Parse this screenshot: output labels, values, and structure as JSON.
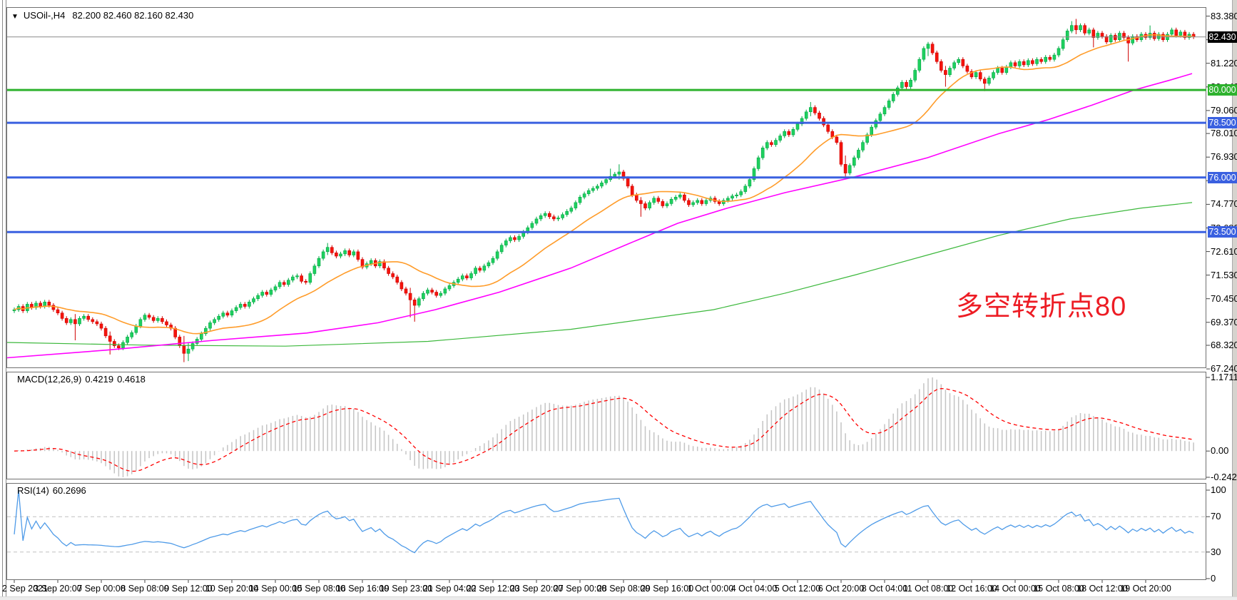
{
  "header": {
    "dropdown_icon": "▼",
    "symbol_display": "USOil-,H4",
    "ohlc_display": "82.200 82.460 82.160 82.430",
    "open": "82.200",
    "high": "82.460",
    "low": "82.160",
    "close": "82.430"
  },
  "colors": {
    "up_fill": "#1fd05f",
    "up_stroke": "#00a844",
    "down_fill": "#f5140c",
    "down_stroke": "#cf0000",
    "ma_orange": "#ff9c2a",
    "ma_magenta": "#ff00ff",
    "ma_green": "#3cb83c",
    "hline_green": "#2eb22e",
    "hline_blue": "#3a60e0",
    "price_line": "#8a8a8a",
    "price_badge_bg": "#000000",
    "macd_bar": "#c4c4c4",
    "macd_signal": "#ff0000",
    "rsi_line": "#4f9be8",
    "grid_dash": "#c0c0c0",
    "border": "#707070"
  },
  "chart_data": {
    "type": "candlestick",
    "symbol": "USOil-",
    "timeframe": "H4",
    "first_open": 69.9,
    "closes": [
      69.95,
      70.1,
      69.9,
      70.2,
      70.05,
      70.25,
      70.1,
      70.3,
      70.15,
      69.95,
      69.8,
      69.55,
      69.35,
      69.5,
      69.3,
      69.55,
      69.65,
      69.5,
      69.4,
      69.3,
      69.1,
      68.75,
      68.5,
      68.3,
      68.2,
      68.45,
      68.7,
      68.9,
      69.2,
      69.5,
      69.7,
      69.6,
      69.45,
      69.55,
      69.4,
      69.25,
      69.1,
      68.7,
      68.3,
      67.95,
      68.15,
      68.4,
      68.6,
      68.85,
      69.1,
      69.35,
      69.5,
      69.65,
      69.8,
      69.7,
      69.9,
      70.05,
      70.2,
      70.1,
      70.3,
      70.45,
      70.6,
      70.75,
      70.65,
      70.85,
      71.0,
      71.2,
      71.1,
      71.3,
      71.45,
      71.5,
      71.25,
      71.2,
      71.6,
      71.95,
      72.3,
      72.6,
      72.8,
      72.55,
      72.4,
      72.5,
      72.65,
      72.45,
      72.6,
      72.25,
      71.9,
      72.05,
      72.2,
      71.95,
      72.15,
      71.85,
      71.6,
      71.45,
      71.2,
      70.9,
      70.7,
      70.4,
      70.15,
      70.45,
      70.7,
      70.85,
      70.75,
      70.6,
      70.7,
      70.9,
      71.05,
      71.2,
      71.35,
      71.5,
      71.4,
      71.6,
      71.85,
      71.75,
      71.95,
      72.1,
      72.3,
      72.6,
      72.9,
      73.1,
      73.25,
      73.15,
      73.3,
      73.5,
      73.7,
      73.9,
      74.1,
      74.25,
      74.35,
      74.2,
      74.1,
      74.15,
      74.3,
      74.45,
      74.6,
      74.85,
      75.1,
      75.25,
      75.4,
      75.5,
      75.6,
      75.75,
      75.9,
      76.05,
      76.15,
      76.25,
      75.95,
      75.6,
      75.2,
      74.95,
      74.8,
      74.6,
      74.85,
      75.05,
      74.9,
      74.7,
      74.8,
      75.0,
      75.1,
      75.2,
      74.95,
      74.75,
      74.85,
      74.95,
      74.8,
      74.95,
      75.05,
      74.9,
      74.8,
      74.95,
      75.05,
      75.15,
      75.2,
      75.35,
      75.6,
      75.9,
      76.4,
      76.9,
      77.35,
      77.6,
      77.5,
      77.7,
      77.9,
      78.1,
      77.95,
      78.2,
      78.45,
      78.7,
      79.0,
      79.2,
      78.95,
      78.7,
      78.4,
      78.1,
      77.85,
      77.6,
      76.6,
      76.2,
      76.55,
      76.9,
      77.25,
      77.6,
      77.95,
      78.3,
      78.6,
      78.9,
      79.2,
      79.5,
      79.8,
      80.1,
      80.35,
      80.15,
      80.45,
      80.9,
      81.4,
      81.9,
      82.1,
      81.7,
      81.3,
      80.9,
      80.7,
      81.0,
      81.25,
      81.4,
      81.1,
      80.85,
      80.6,
      80.8,
      80.5,
      80.3,
      80.55,
      80.8,
      81.0,
      80.8,
      81.05,
      81.25,
      81.1,
      81.3,
      81.15,
      81.35,
      81.2,
      81.4,
      81.3,
      81.5,
      81.4,
      81.6,
      81.9,
      82.3,
      82.7,
      82.95,
      82.75,
      82.95,
      82.6,
      82.75,
      82.4,
      82.6,
      82.45,
      82.2,
      82.5,
      82.3,
      82.6,
      82.4,
      82.15,
      82.45,
      82.3,
      82.55,
      82.4,
      82.6,
      82.35,
      82.55,
      82.3,
      82.55,
      82.75,
      82.5,
      82.65,
      82.4,
      82.55,
      82.43
    ],
    "wick_overrides": {
      "14": [
        69.75,
        68.55
      ],
      "22": [
        68.95,
        67.9
      ],
      "39": [
        68.75,
        67.55
      ],
      "40": [
        68.45,
        67.6
      ],
      "72": [
        73.0,
        72.45
      ],
      "91": [
        70.95,
        69.6
      ],
      "92": [
        70.5,
        69.4
      ],
      "137": [
        76.4,
        75.8
      ],
      "139": [
        76.6,
        75.9
      ],
      "144": [
        75.1,
        74.2
      ],
      "183": [
        79.45,
        78.8
      ],
      "191": [
        77.0,
        76.0
      ],
      "210": [
        82.2,
        81.55
      ],
      "214": [
        81.1,
        80.15
      ],
      "223": [
        80.6,
        79.95
      ],
      "243": [
        83.15,
        82.6
      ],
      "244": [
        83.25,
        82.55
      ],
      "248": [
        82.85,
        81.95
      ],
      "256": [
        82.5,
        81.3
      ],
      "261": [
        82.95,
        82.3
      ]
    },
    "price_axis_ticks": [
      {
        "label": "83.380",
        "price": 83.38
      },
      {
        "label": "82.300",
        "price": 82.3
      },
      {
        "label": "81.220",
        "price": 81.22
      },
      {
        "label": "80.140",
        "price": 80.14
      },
      {
        "label": "79.060",
        "price": 79.06
      },
      {
        "label": "78.010",
        "price": 78.01
      },
      {
        "label": "76.930",
        "price": 76.93
      },
      {
        "label": "75.850",
        "price": 75.85
      },
      {
        "label": "74.770",
        "price": 74.77
      },
      {
        "label": "73.690",
        "price": 73.69
      },
      {
        "label": "72.610",
        "price": 72.61
      },
      {
        "label": "71.530",
        "price": 71.53
      },
      {
        "label": "70.450",
        "price": 70.45
      },
      {
        "label": "69.370",
        "price": 69.37
      },
      {
        "label": "68.320",
        "price": 68.32
      },
      {
        "label": "67.240",
        "price": 67.24
      }
    ],
    "hlines": [
      {
        "price": 80.0,
        "label": "80.000",
        "color": "#2eb22e"
      },
      {
        "price": 78.5,
        "label": "78.500",
        "color": "#3a60e0"
      },
      {
        "price": 76.0,
        "label": "76.000",
        "color": "#3a60e0"
      },
      {
        "price": 73.5,
        "label": "73.500",
        "color": "#3a60e0"
      }
    ],
    "current_price": {
      "price": 82.43,
      "label": "82.430"
    },
    "moving_averages": {
      "orange_period": 21,
      "magenta_path": [
        [
          10,
          67.75
        ],
        [
          150,
          68.1
        ],
        [
          300,
          68.55
        ],
        [
          430,
          68.88
        ],
        [
          530,
          69.35
        ],
        [
          610,
          69.95
        ],
        [
          700,
          70.75
        ],
        [
          800,
          71.85
        ],
        [
          880,
          72.95
        ],
        [
          950,
          73.9
        ],
        [
          1020,
          74.6
        ],
        [
          1100,
          75.3
        ],
        [
          1195,
          76.0
        ],
        [
          1300,
          76.9
        ],
        [
          1400,
          78.0
        ],
        [
          1470,
          78.65
        ],
        [
          1530,
          79.3
        ],
        [
          1590,
          80.0
        ],
        [
          1640,
          80.45
        ],
        [
          1671,
          80.75
        ]
      ],
      "green_path": [
        [
          10,
          68.45
        ],
        [
          200,
          68.33
        ],
        [
          400,
          68.28
        ],
        [
          600,
          68.5
        ],
        [
          800,
          69.05
        ],
        [
          1000,
          69.95
        ],
        [
          1100,
          70.7
        ],
        [
          1200,
          71.55
        ],
        [
          1300,
          72.45
        ],
        [
          1400,
          73.35
        ],
        [
          1500,
          74.1
        ],
        [
          1600,
          74.6
        ],
        [
          1671,
          74.85
        ]
      ]
    },
    "macd": {
      "title": "MACD(12,26,9)",
      "main_value": "0.4219",
      "signal_value": "0.4618",
      "params": [
        12,
        26,
        9
      ],
      "axis_max": "1.1711",
      "axis_zero": "0.00",
      "axis_min": "-0.2424"
    },
    "rsi": {
      "title": "RSI(14)",
      "value": "60.2696",
      "period": 14,
      "axis": [
        "100",
        "70",
        "30",
        "0"
      ],
      "levels": [
        70,
        30
      ]
    },
    "time_labels": [
      "2 Sep 2021",
      "3 Sep 20:00",
      "7 Sep 00:00",
      "8 Sep 08:00",
      "9 Sep 12:00",
      "10 Sep 20:00",
      "14 Sep 00:00",
      "15 Sep 08:00",
      "16 Sep 16:00",
      "19 Sep 23:00",
      "21 Sep 04:00",
      "22 Sep 12:00",
      "23 Sep 20:00",
      "27 Sep 00:00",
      "28 Sep 08:00",
      "29 Sep 16:00",
      "1 Oct 00:00",
      "4 Oct 04:00",
      "5 Oct 12:00",
      "6 Oct 20:00",
      "8 Oct 04:00",
      "11 Oct 08:00",
      "12 Oct 16:00",
      "14 Oct 00:00",
      "15 Oct 08:00",
      "18 Oct 12:00",
      "19 Oct 20:00"
    ],
    "annotation": {
      "text": "多空转折点80",
      "color": "#ed1c24"
    }
  }
}
